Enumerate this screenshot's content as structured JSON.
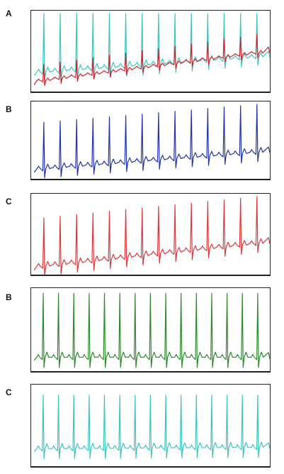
{
  "figure": {
    "panels": [
      {
        "label": "A",
        "colors": [
          "#3ec4c0",
          "#d2232a"
        ]
      },
      {
        "label": "B",
        "colors": [
          "#2233aa"
        ]
      },
      {
        "label": "C",
        "colors": [
          "#d9383c"
        ]
      },
      {
        "label": "B",
        "colors": [
          "#2c8a2c"
        ]
      },
      {
        "label": "C",
        "colors": [
          "#3ec4c0"
        ]
      }
    ]
  },
  "chart_data": [
    {
      "type": "line",
      "title": "",
      "xlabel": "",
      "ylabel": "",
      "grid": false,
      "series": [
        {
          "color": "#3ec4c0",
          "beats": 14,
          "baseline_start": 0.22,
          "baseline_end": 0.44,
          "r_peak": 1.0
        },
        {
          "color": "#d2232a",
          "beats": 14,
          "baseline_start": 0.1,
          "baseline_end": 0.5,
          "r_peak_start": 0.33,
          "r_peak_end": 0.72
        }
      ]
    },
    {
      "type": "line",
      "title": "",
      "xlabel": "",
      "ylabel": "",
      "grid": false,
      "series": [
        {
          "color": "#2233aa",
          "beats": 14,
          "baseline_start": 0.1,
          "baseline_end": 0.35,
          "r_peak_start": 0.75,
          "r_peak_end": 1.0
        }
      ]
    },
    {
      "type": "line",
      "title": "",
      "xlabel": "",
      "ylabel": "",
      "grid": false,
      "series": [
        {
          "color": "#d9383c",
          "beats": 14,
          "baseline_start": 0.07,
          "baseline_end": 0.4,
          "r_peak_start": 0.72,
          "r_peak_end": 1.0
        }
      ]
    },
    {
      "type": "line",
      "title": "",
      "xlabel": "",
      "ylabel": "",
      "grid": false,
      "series": [
        {
          "color": "#2c8a2c",
          "beats": 15,
          "baseline_start": 0.15,
          "baseline_end": 0.15,
          "r_peak": 0.97
        }
      ]
    },
    {
      "type": "line",
      "title": "",
      "xlabel": "",
      "ylabel": "",
      "grid": false,
      "series": [
        {
          "color": "#3ec4c0",
          "beats": 15,
          "baseline_start": 0.2,
          "baseline_end": 0.22,
          "r_peak": 0.9
        }
      ]
    }
  ]
}
